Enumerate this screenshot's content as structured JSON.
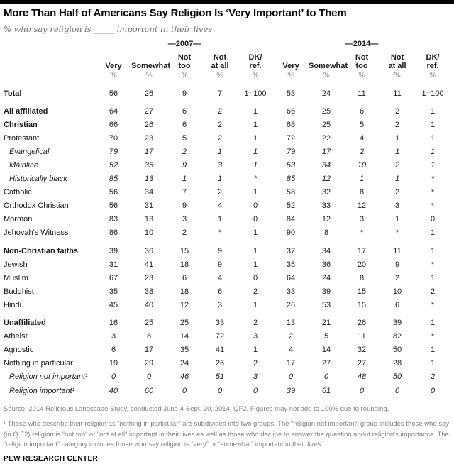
{
  "chart_data": {
    "type": "table",
    "title": "More Than Half of Americans Say Religion Is ‘Very Important’ to Them",
    "subtitle": "% who say religion is _____ important in their lives",
    "column_groups": [
      {
        "label": "—2007—"
      },
      {
        "label": "—2014—"
      }
    ],
    "columns": [
      "Very",
      "Somewhat",
      "Not\ntoo",
      "Not\nat all",
      "DK/\nref."
    ],
    "percent": "%",
    "rows": [
      {
        "label": "Total",
        "bold": true,
        "v2007": [
          "56",
          "26",
          "9",
          "7",
          "1=100"
        ],
        "v2014": [
          "53",
          "24",
          "11",
          "11",
          "1=100"
        ]
      },
      {
        "label": "All affiliated",
        "bold": true,
        "gap": true,
        "v2007": [
          "64",
          "27",
          "6",
          "2",
          "1"
        ],
        "v2014": [
          "66",
          "25",
          "6",
          "2",
          "1"
        ]
      },
      {
        "label": "Christian",
        "bold": true,
        "v2007": [
          "66",
          "26",
          "6",
          "2",
          "1"
        ],
        "v2014": [
          "68",
          "25",
          "5",
          "2",
          "1"
        ]
      },
      {
        "label": "Protestant",
        "v2007": [
          "70",
          "23",
          "5",
          "2",
          "1"
        ],
        "v2014": [
          "72",
          "22",
          "4",
          "1",
          "1"
        ]
      },
      {
        "label": "Evangelical",
        "italic": true,
        "indent": true,
        "v2007": [
          "79",
          "17",
          "2",
          "1",
          "1"
        ],
        "v2014": [
          "79",
          "17",
          "2",
          "1",
          "1"
        ]
      },
      {
        "label": "Mainline",
        "italic": true,
        "indent": true,
        "v2007": [
          "52",
          "35",
          "9",
          "3",
          "1"
        ],
        "v2014": [
          "53",
          "34",
          "10",
          "2",
          "1"
        ]
      },
      {
        "label": "Historically black",
        "italic": true,
        "indent": true,
        "v2007": [
          "85",
          "13",
          "1",
          "1",
          "*"
        ],
        "v2014": [
          "85",
          "12",
          "1",
          "1",
          "*"
        ]
      },
      {
        "label": "Catholic",
        "v2007": [
          "56",
          "34",
          "7",
          "2",
          "1"
        ],
        "v2014": [
          "58",
          "32",
          "8",
          "2",
          "*"
        ]
      },
      {
        "label": "Orthodox Christian",
        "v2007": [
          "56",
          "31",
          "9",
          "4",
          "0"
        ],
        "v2014": [
          "52",
          "33",
          "12",
          "3",
          "*"
        ]
      },
      {
        "label": "Mormon",
        "v2007": [
          "83",
          "13",
          "3",
          "1",
          "0"
        ],
        "v2014": [
          "84",
          "12",
          "3",
          "1",
          "0"
        ]
      },
      {
        "label": "Jehovah's Witness",
        "v2007": [
          "86",
          "10",
          "2",
          "*",
          "1"
        ],
        "v2014": [
          "90",
          "8",
          "*",
          "*",
          "1"
        ]
      },
      {
        "label": "Non-Christian faiths",
        "bold": true,
        "gap": true,
        "v2007": [
          "39",
          "36",
          "15",
          "9",
          "1"
        ],
        "v2014": [
          "37",
          "34",
          "17",
          "11",
          "1"
        ]
      },
      {
        "label": "Jewish",
        "v2007": [
          "31",
          "41",
          "18",
          "9",
          "1"
        ],
        "v2014": [
          "35",
          "36",
          "20",
          "9",
          "*"
        ]
      },
      {
        "label": "Muslim",
        "v2007": [
          "67",
          "23",
          "6",
          "4",
          "0"
        ],
        "v2014": [
          "64",
          "24",
          "8",
          "2",
          "1"
        ]
      },
      {
        "label": "Buddhist",
        "v2007": [
          "35",
          "38",
          "18",
          "6",
          "2"
        ],
        "v2014": [
          "33",
          "39",
          "15",
          "10",
          "2"
        ]
      },
      {
        "label": "Hindu",
        "v2007": [
          "45",
          "40",
          "12",
          "3",
          "1"
        ],
        "v2014": [
          "26",
          "53",
          "15",
          "6",
          "*"
        ]
      },
      {
        "label": "Unaffiliated",
        "bold": true,
        "gap": true,
        "v2007": [
          "16",
          "25",
          "25",
          "33",
          "2"
        ],
        "v2014": [
          "13",
          "21",
          "26",
          "39",
          "1"
        ]
      },
      {
        "label": "Atheist",
        "v2007": [
          "3",
          "8",
          "14",
          "72",
          "3"
        ],
        "v2014": [
          "2",
          "5",
          "11",
          "82",
          "*"
        ]
      },
      {
        "label": "Agnostic",
        "v2007": [
          "6",
          "17",
          "35",
          "41",
          "1"
        ],
        "v2014": [
          "4",
          "14",
          "32",
          "50",
          "1"
        ]
      },
      {
        "label": "Nothing in particular",
        "v2007": [
          "19",
          "29",
          "24",
          "26",
          "2"
        ],
        "v2014": [
          "17",
          "27",
          "27",
          "28",
          "1"
        ]
      },
      {
        "label": "Religion not important¹",
        "italic": true,
        "indent": true,
        "v2007": [
          "0",
          "0",
          "46",
          "51",
          "3"
        ],
        "v2014": [
          "0",
          "0",
          "48",
          "50",
          "2"
        ]
      },
      {
        "label": "Religion important¹",
        "italic": true,
        "indent": true,
        "v2007": [
          "40",
          "60",
          "0",
          "0",
          "0"
        ],
        "v2014": [
          "39",
          "61",
          "0",
          "0",
          "0"
        ]
      }
    ]
  },
  "footer": {
    "source": "Source: 2014 Religious Landscape Study, conducted June 4-Sept. 30, 2014. QF2. Figures may not add to 100% due to rounding.",
    "footnote": "¹ Those who describe their religion as “nothing in particular” are subdivided into two groups. The “religion not important” group includes those who say (in Q.F2) religion is “not too” or “not at all” important in their lives as well as those who decline to answer the question about religion's importance. The “religion important” category includes those who say religion is “very” or “somewhat” important in their lives.",
    "brand": "PEW RESEARCH CENTER"
  }
}
